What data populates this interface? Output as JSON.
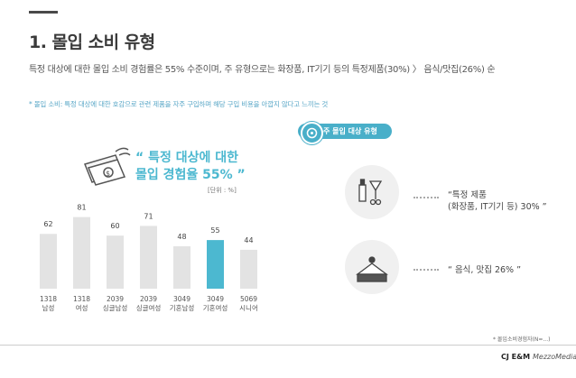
{
  "title": "1. 몰입 소비 유형",
  "subtitle": "특정 대상에 대한 몰입 소비 경험률은 55% 수준이며, 주 유형으로는 화장품, IT기기 등의 특정제품(30%) 〉 음식/맛집(26%) 순",
  "definition": "* 몰입 소비: 특정 대상에 대한 호감으로 관련 제품을 자주 구입하며 해당 구입 비용을 아깝지 않다고 느끼는 것",
  "quote": {
    "line1": "“ 특정 대상에 대한",
    "line2": "몰입 경험율 55% ”"
  },
  "unit": "[단위 : %]",
  "chart_data": {
    "type": "bar",
    "categories": [
      {
        "line1": "1318",
        "line2": "남성"
      },
      {
        "line1": "1318",
        "line2": "여성"
      },
      {
        "line1": "2039",
        "line2": "싱글남성"
      },
      {
        "line1": "2039",
        "line2": "싱글여성"
      },
      {
        "line1": "3049",
        "line2": "기혼남성"
      },
      {
        "line1": "3049",
        "line2": "기혼여성"
      },
      {
        "line1": "5069",
        "line2": "시니어"
      }
    ],
    "values": [
      62,
      81,
      60,
      71,
      48,
      55,
      44
    ],
    "highlight_index": 5,
    "colors": {
      "bar": "#e3e3e3",
      "highlight": "#4cb8d0"
    },
    "ylim": [
      0,
      100
    ]
  },
  "panel": {
    "header": "주 몰입 대상 유형",
    "accent": "#49afc9",
    "items": [
      {
        "icon": "cosmetics-icon",
        "line1": "“특정 제품",
        "line2": "(화장품, IT기기 등) 30% ”"
      },
      {
        "icon": "cake-icon",
        "line1": "“ 음식, 맛집 26% ”"
      }
    ]
  },
  "footnote": "* 몰입소비경험자(N=...)",
  "footer": {
    "logo1": "CJ E&M",
    "logo2": "MezzoMedia"
  }
}
